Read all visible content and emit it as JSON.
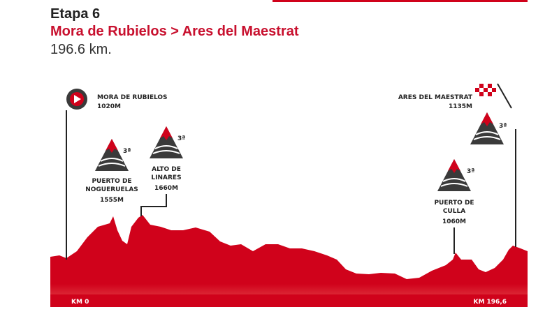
{
  "header": {
    "stage": "Etapa 6",
    "route": "Mora de Rubielos > Ares del Maestrat",
    "distance": "196.6 km."
  },
  "colors": {
    "accent": "#c8102e",
    "profile": "#d0021b",
    "dark": "#222222",
    "mountain_base": "#3a3a3a"
  },
  "start": {
    "name": "MORA DE RUBIELOS",
    "elevation": "1020M",
    "icon": "play-icon"
  },
  "finish": {
    "name": "ARES DEL MAESTRAT",
    "elevation": "1135M",
    "icon": "checkered-flag-icon"
  },
  "climbs": [
    {
      "name_line1": "PUERTO DE",
      "name_line2": "NOGUERUELAS",
      "elevation": "1555M",
      "category": "3ª"
    },
    {
      "name_line1": "ALTO DE",
      "name_line2": "LINARES",
      "elevation": "1660M",
      "category": "3ª"
    },
    {
      "name_line1": "PUERTO DE",
      "name_line2": "CULLA",
      "elevation": "1060M",
      "category": "3ª"
    },
    {
      "name_line1": "",
      "name_line2": "",
      "elevation": "",
      "category": "3ª"
    }
  ],
  "km_start": "KM 0",
  "km_end": "KM 196,6"
}
